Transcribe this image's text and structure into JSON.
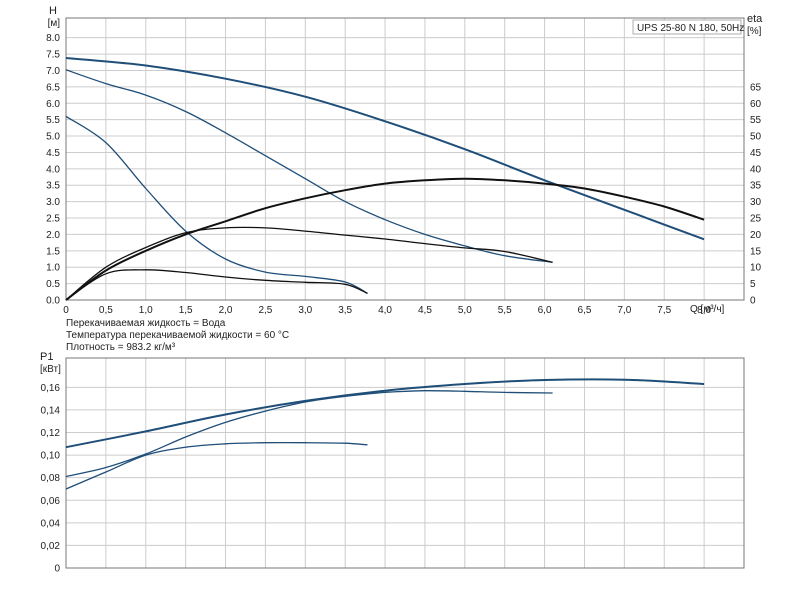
{
  "title": "UPS 25-80 N 180, 50Hz",
  "info_lines": [
    "Перекачиваемая жидкость = Вода",
    "Температура перекачиваемой жидкости = 60 °C",
    "Плотность = 983.2 кг/м³"
  ],
  "colors": {
    "pump_curve": "#1f4e79",
    "efficiency_curve": "#111111",
    "grid": "#cccccc"
  },
  "chart_data": [
    {
      "type": "line",
      "name": "head-efficiency",
      "xlabel": "Q [м³/ч]",
      "ylabel": "H [м]",
      "y2label": "eta [%]",
      "xlim": [
        0,
        8.5
      ],
      "ylim": [
        0,
        8.6
      ],
      "y2lim": [
        0,
        86
      ],
      "x_ticks": [
        "0",
        "0,5",
        "1,0",
        "1,5",
        "2,0",
        "2,5",
        "3,0",
        "3,5",
        "4,0",
        "4,5",
        "5,0",
        "5,5",
        "6,0",
        "6,5",
        "7,0",
        "7,5",
        "8,0"
      ],
      "y_ticks": [
        "0.0",
        "0.5",
        "1.0",
        "1.5",
        "2.0",
        "2.5",
        "3.0",
        "3.5",
        "4.0",
        "4.5",
        "5.0",
        "5.5",
        "6.0",
        "6.5",
        "7.0",
        "7.5",
        "8.0"
      ],
      "y2_ticks": [
        "0",
        "5",
        "10",
        "15",
        "20",
        "25",
        "30",
        "35",
        "40",
        "45",
        "50",
        "55",
        "60",
        "65"
      ],
      "grid": true,
      "head_series": [
        {
          "axis": "H",
          "x": [
            0,
            1,
            2,
            3,
            4,
            5,
            6,
            7,
            8
          ],
          "y": [
            7.38,
            7.15,
            6.75,
            6.2,
            5.45,
            4.6,
            3.65,
            2.75,
            1.85
          ]
        },
        {
          "axis": "H",
          "x": [
            0,
            0.5,
            1,
            1.5,
            2,
            2.5,
            3,
            3.5,
            4,
            4.5,
            5,
            5.5,
            6.1
          ],
          "y": [
            7.02,
            6.6,
            6.25,
            5.75,
            5.1,
            4.4,
            3.7,
            3.0,
            2.45,
            2.0,
            1.65,
            1.35,
            1.15
          ]
        },
        {
          "axis": "H",
          "x": [
            0,
            0.5,
            1,
            1.5,
            2,
            2.5,
            3,
            3.5,
            3.78
          ],
          "y": [
            5.6,
            4.8,
            3.4,
            2.1,
            1.25,
            0.85,
            0.72,
            0.55,
            0.2
          ]
        }
      ],
      "efficiency_series": [
        {
          "axis": "eta",
          "x": [
            0,
            0.5,
            1,
            1.5,
            2,
            2.5,
            3,
            3.5,
            4,
            4.5,
            5,
            5.5,
            6,
            6.5,
            7,
            7.5,
            8
          ],
          "y": [
            0,
            9,
            15,
            20,
            24,
            28,
            31,
            33.5,
            35.5,
            36.5,
            37,
            36.5,
            35.5,
            34,
            31.5,
            28.5,
            24.5
          ]
        },
        {
          "axis": "eta",
          "x": [
            0,
            0.5,
            1,
            1.5,
            2,
            2.5,
            3,
            3.5,
            4,
            4.5,
            5,
            5.5,
            6.1
          ],
          "y": [
            0,
            10,
            16,
            20.5,
            22,
            22,
            21,
            19.8,
            18.6,
            17.2,
            15.9,
            14.8,
            11.5
          ]
        },
        {
          "axis": "eta",
          "x": [
            0,
            0.5,
            1,
            1.5,
            2,
            2.5,
            3,
            3.5,
            3.78
          ],
          "y": [
            0,
            8,
            9.2,
            8.4,
            7.0,
            6.0,
            5.4,
            4.8,
            2
          ]
        }
      ]
    },
    {
      "type": "line",
      "name": "power",
      "xlabel": "",
      "ylabel": "P1 [кВт]",
      "xlim": [
        0,
        8.5
      ],
      "ylim": [
        0,
        0.186
      ],
      "y_ticks": [
        "0",
        "0,02",
        "0,04",
        "0,06",
        "0,08",
        "0,10",
        "0,12",
        "0,14",
        "0,16"
      ],
      "grid": true,
      "series": [
        {
          "x": [
            0,
            1,
            2,
            3,
            4,
            5,
            6,
            7,
            8
          ],
          "y": [
            0.107,
            0.121,
            0.136,
            0.148,
            0.157,
            0.163,
            0.1665,
            0.1668,
            0.163
          ]
        },
        {
          "x": [
            0,
            0.5,
            1,
            1.5,
            2,
            2.5,
            3,
            3.5,
            4,
            4.5,
            5,
            5.5,
            6.1
          ],
          "y": [
            0.081,
            0.089,
            0.101,
            0.116,
            0.129,
            0.139,
            0.147,
            0.152,
            0.1555,
            0.157,
            0.1565,
            0.1555,
            0.155
          ]
        },
        {
          "x": [
            0,
            0.5,
            1,
            1.5,
            2,
            2.5,
            3,
            3.5,
            3.78
          ],
          "y": [
            0.07,
            0.085,
            0.1,
            0.107,
            0.11,
            0.111,
            0.111,
            0.1105,
            0.109
          ]
        }
      ]
    }
  ]
}
